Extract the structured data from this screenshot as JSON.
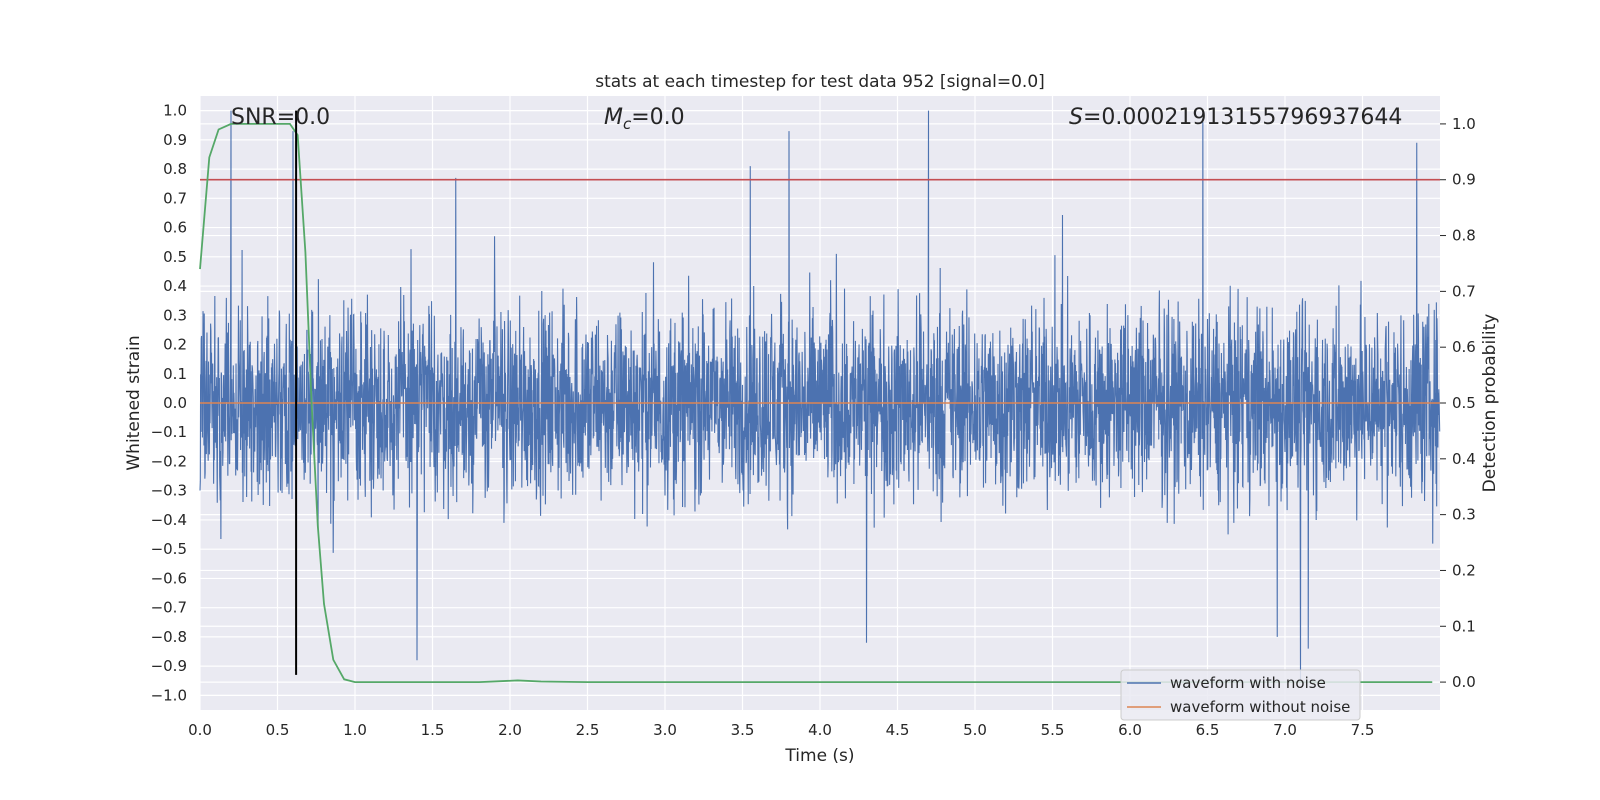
{
  "chart_data": {
    "type": "line",
    "title": "stats at each timestep for test data 952 [signal=0.0]",
    "xlabel": "Time (s)",
    "ylabel": "Whitened strain",
    "y2label": "Detection probability",
    "xlim": [
      0.0,
      8.0
    ],
    "ylim": [
      -1.05,
      1.05
    ],
    "y2lim": [
      -0.05,
      1.05
    ],
    "xticks": [
      "0.0",
      "0.5",
      "1.0",
      "1.5",
      "2.0",
      "2.5",
      "3.0",
      "3.5",
      "4.0",
      "4.5",
      "5.0",
      "5.5",
      "6.0",
      "6.5",
      "7.0",
      "7.5"
    ],
    "yticks": [
      "1.0",
      "0.9",
      "0.8",
      "0.7",
      "0.6",
      "0.5",
      "0.4",
      "0.3",
      "0.2",
      "0.1",
      "0.0",
      "−0.1",
      "−0.2",
      "−0.3",
      "−0.4",
      "−0.5",
      "−0.6",
      "−0.7",
      "−0.8",
      "−0.9",
      "−1.0"
    ],
    "y2ticks": [
      "1.0",
      "0.9",
      "0.8",
      "0.7",
      "0.6",
      "0.5",
      "0.4",
      "0.3",
      "0.2",
      "0.1",
      "0.0"
    ],
    "grid": true,
    "legend_position": "lower-right",
    "annotations": {
      "snr": "SNR=0.0",
      "mc_symbol": "M",
      "mc_sub": "c",
      "mc_value": "=0.0",
      "s_symbol": "S",
      "s_value": "=0.00021913155796937644"
    },
    "series": [
      {
        "name": "waveform with noise",
        "color": "#4c72b0",
        "description_of_shape": "dense noise",
        "typical_envelope": [
          -0.35,
          0.35
        ],
        "peaks": [
          {
            "x": 0.2,
            "y": 1.0
          },
          {
            "x": 0.6,
            "y": 0.93
          },
          {
            "x": 0.62,
            "y": 0.97
          },
          {
            "x": 1.65,
            "y": 0.77
          },
          {
            "x": 3.55,
            "y": 0.81
          },
          {
            "x": 3.8,
            "y": 0.93
          },
          {
            "x": 4.7,
            "y": 1.0
          },
          {
            "x": 6.47,
            "y": 0.96
          },
          {
            "x": 7.85,
            "y": 0.89
          },
          {
            "x": 1.4,
            "y": -0.88
          },
          {
            "x": 4.3,
            "y": -0.82
          },
          {
            "x": 7.1,
            "y": -0.95
          },
          {
            "x": 7.15,
            "y": -0.84
          },
          {
            "x": 6.95,
            "y": -0.8
          }
        ]
      },
      {
        "name": "waveform without noise",
        "color": "#dd8452",
        "x": [
          0.0,
          8.0
        ],
        "y": [
          0.0,
          0.0
        ]
      },
      {
        "name": "",
        "color": "#55a868",
        "axis": "right",
        "x": [
          0.0,
          0.06,
          0.12,
          0.2,
          0.3,
          0.4,
          0.5,
          0.58,
          0.63,
          0.68,
          0.72,
          0.76,
          0.8,
          0.86,
          0.93,
          1.0,
          1.5,
          1.8,
          2.05,
          2.2,
          2.5,
          3.0,
          4.0,
          5.0,
          6.0,
          7.0,
          7.95
        ],
        "y": [
          0.74,
          0.94,
          0.99,
          1.0,
          1.0,
          1.0,
          1.0,
          1.0,
          0.98,
          0.77,
          0.5,
          0.28,
          0.14,
          0.04,
          0.005,
          0.0,
          0.0,
          0.0,
          0.003,
          0.001,
          0.0,
          0.0,
          0.0,
          0.0,
          0.0,
          0.0,
          0.0
        ]
      }
    ],
    "hlines": [
      {
        "axis": "right",
        "y": 0.9,
        "color": "#c44e52"
      }
    ],
    "vlines": [
      {
        "x": 0.62,
        "y_from": -0.93,
        "y_to": 1.0,
        "color": "#000000"
      }
    ]
  }
}
